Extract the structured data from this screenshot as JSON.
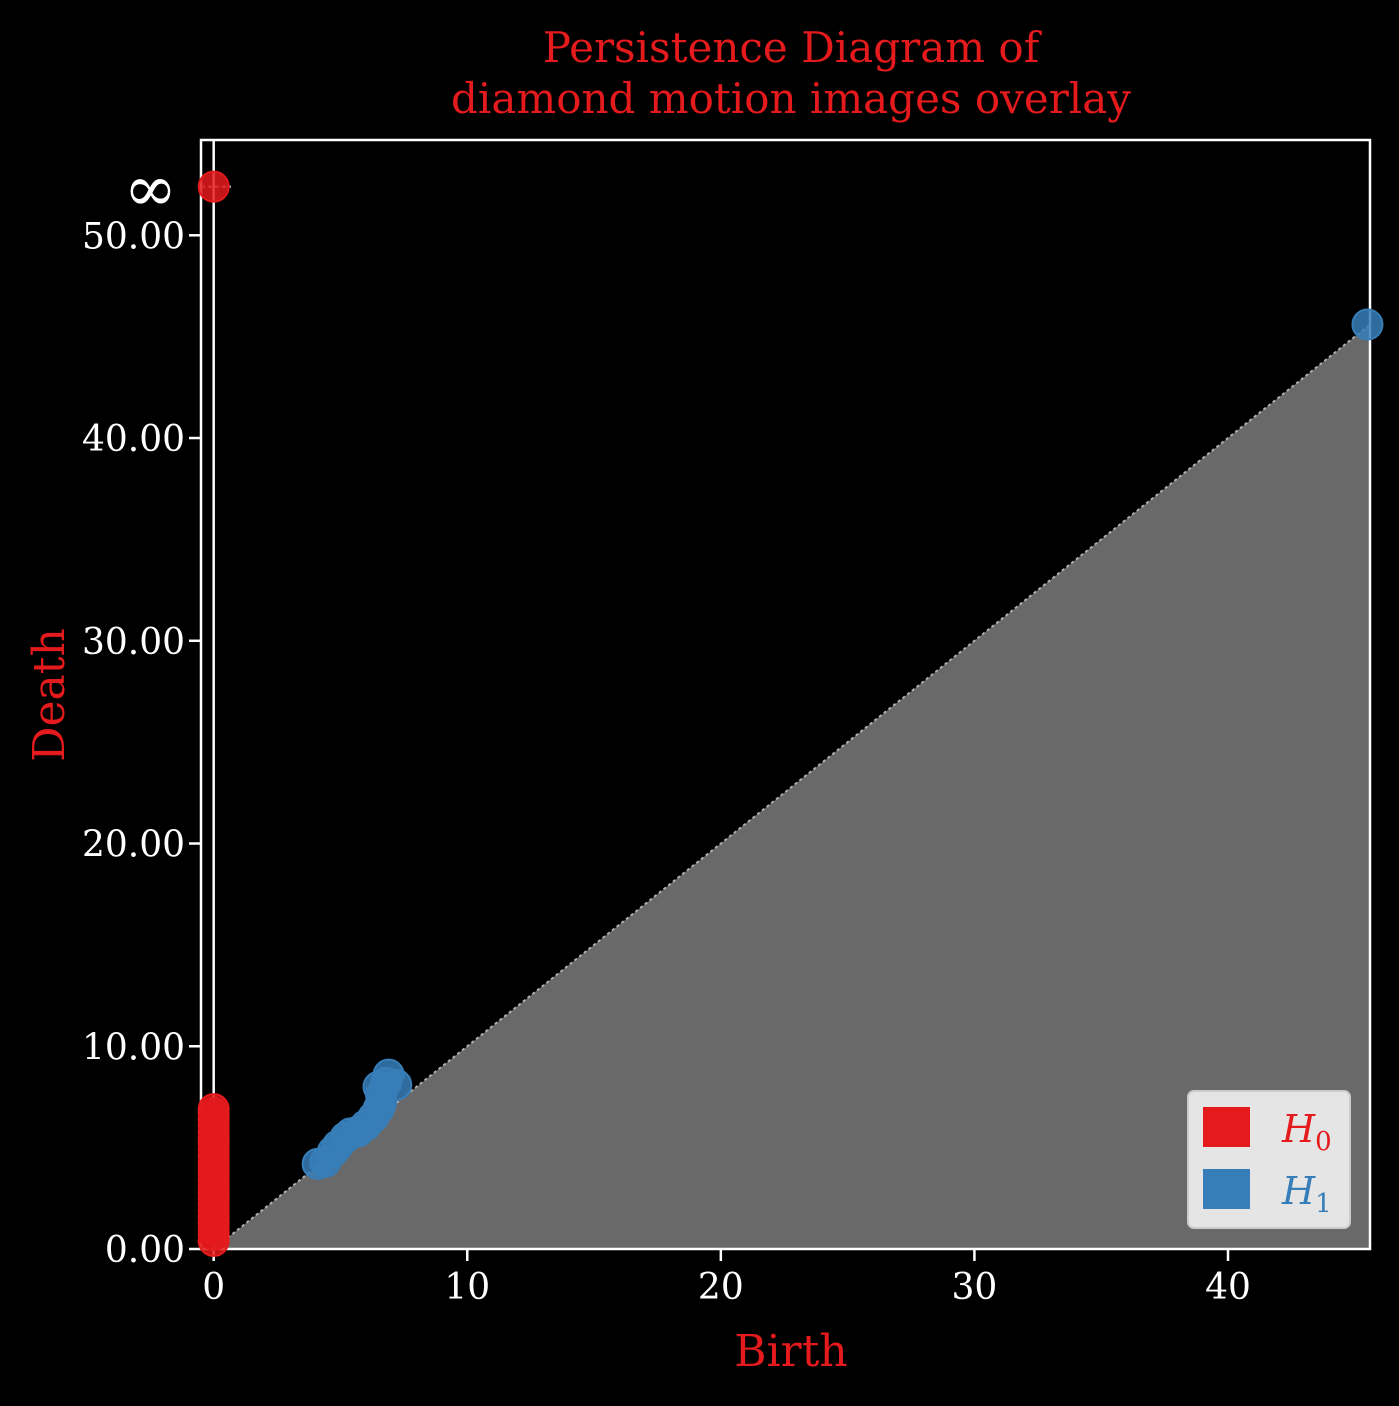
{
  "chart_data": {
    "type": "scatter",
    "title_line1": "Persistence Diagram of",
    "title_line2": "diamond motion images overlay",
    "xlabel": "Birth",
    "ylabel": "Death",
    "xlim": [
      -0.5,
      45.6
    ],
    "ylim": [
      0,
      54.7
    ],
    "x_ticks": [
      0,
      10,
      20,
      30,
      40
    ],
    "x_tick_labels": [
      "0",
      "10",
      "20",
      "30",
      "40"
    ],
    "y_ticks": [
      0,
      10,
      20,
      30,
      40,
      50
    ],
    "y_tick_labels": [
      "0.00",
      "10.00",
      "20.00",
      "30.00",
      "40.00",
      "50.00"
    ],
    "infinity_label": "∞",
    "infinity_y": 52.4,
    "grid": false,
    "diagonal_shaded": true,
    "legend_placement": "bottom-right",
    "colors": {
      "background": "#000000",
      "axes": "#ffffff",
      "title": "#e41a1c",
      "h0": "#e41a1c",
      "h1": "#377eb8",
      "diagonal_fill": "#696969",
      "legend_bg": "#e5e5e5"
    },
    "series": [
      {
        "name": "H",
        "subscript": "0",
        "color": "#e41a1c",
        "points": [
          [
            0,
            52.4
          ],
          [
            0,
            0.4
          ],
          [
            0,
            0.7
          ],
          [
            0,
            1.0
          ],
          [
            0,
            1.3
          ],
          [
            0,
            1.6
          ],
          [
            0,
            1.9
          ],
          [
            0,
            2.2
          ],
          [
            0,
            2.5
          ],
          [
            0,
            2.8
          ],
          [
            0,
            3.1
          ],
          [
            0,
            3.4
          ],
          [
            0,
            3.7
          ],
          [
            0,
            4.0
          ],
          [
            0,
            4.3
          ],
          [
            0,
            4.6
          ],
          [
            0,
            4.9
          ],
          [
            0,
            5.2
          ],
          [
            0,
            5.5
          ],
          [
            0,
            5.8
          ],
          [
            0,
            6.1
          ],
          [
            0,
            6.4
          ],
          [
            0,
            6.7
          ],
          [
            0,
            6.9
          ]
        ]
      },
      {
        "name": "H",
        "subscript": "1",
        "color": "#377eb8",
        "points": [
          [
            4.1,
            4.2
          ],
          [
            4.4,
            4.3
          ],
          [
            4.7,
            4.8
          ],
          [
            4.9,
            5.1
          ],
          [
            5.2,
            5.5
          ],
          [
            5.4,
            5.7
          ],
          [
            5.7,
            5.8
          ],
          [
            6.0,
            6.1
          ],
          [
            6.3,
            6.5
          ],
          [
            6.5,
            6.9
          ],
          [
            6.6,
            7.2
          ],
          [
            6.6,
            7.6
          ],
          [
            6.5,
            8.0
          ],
          [
            6.8,
            8.2
          ],
          [
            6.9,
            8.6
          ],
          [
            7.2,
            8.1
          ],
          [
            45.5,
            45.6
          ]
        ]
      }
    ]
  }
}
